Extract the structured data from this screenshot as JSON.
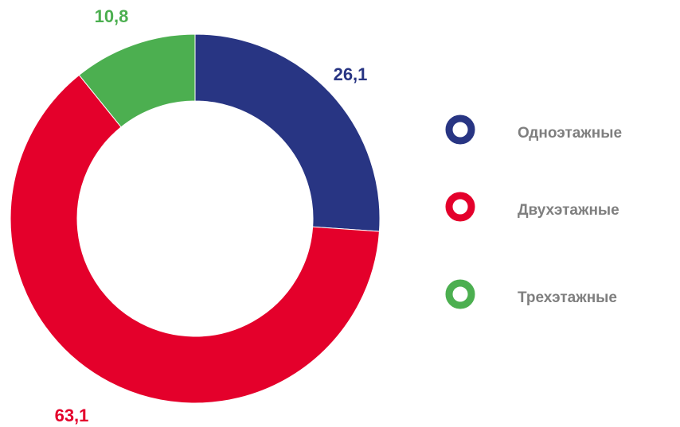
{
  "chart_data": {
    "type": "donut",
    "categories": [
      "Одноэтажные",
      "Двухэтажные",
      "Трехэтажные"
    ],
    "values": [
      26.1,
      63.1,
      10.8
    ],
    "value_labels": [
      "26,1",
      "63,1",
      "10,8"
    ],
    "colors": [
      "#283583",
      "#e4002b",
      "#4caf50"
    ]
  }
}
